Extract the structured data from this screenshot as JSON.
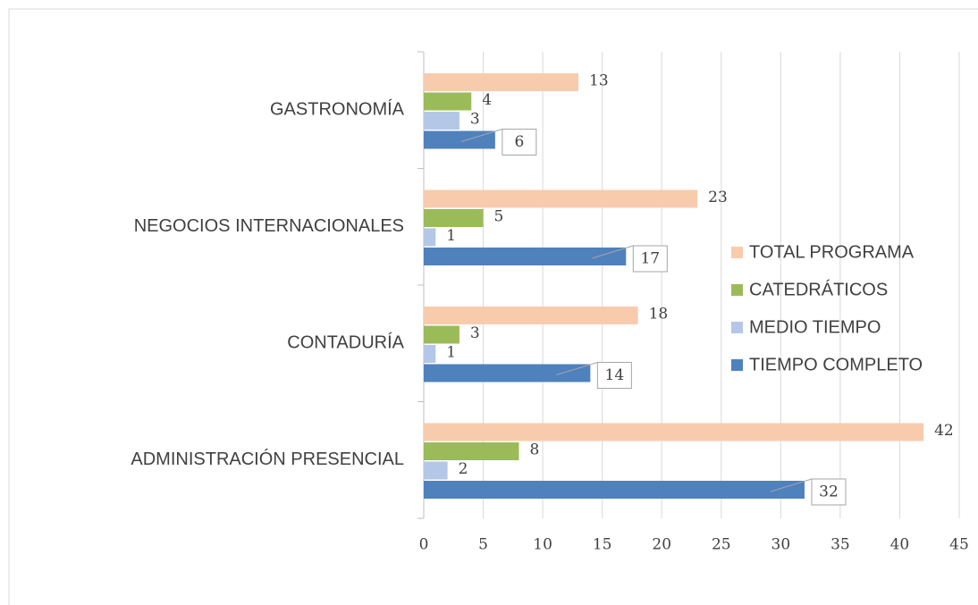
{
  "chart_data": {
    "type": "bar",
    "orientation": "horizontal",
    "categories": [
      "GASTRONOMÍA",
      "NEGOCIOS INTERNACIONALES",
      "CONTADURÍA",
      "ADMINISTRACIÓN PRESENCIAL"
    ],
    "series": [
      {
        "name": "TOTAL PROGRAMA",
        "color": "#f8cbad",
        "values": [
          13,
          23,
          18,
          42
        ]
      },
      {
        "name": "CATEDRÁTICOS",
        "color": "#9bbb59",
        "values": [
          4,
          5,
          3,
          8
        ]
      },
      {
        "name": "MEDIO TIEMPO",
        "color": "#b4c7e7",
        "values": [
          3,
          1,
          1,
          2
        ]
      },
      {
        "name": "TIEMPO COMPLETO",
        "color": "#4f81bd",
        "values": [
          6,
          17,
          14,
          32
        ]
      }
    ],
    "xlim": [
      0,
      45
    ],
    "xticks": [
      0,
      5,
      10,
      15,
      20,
      25,
      30,
      35,
      40,
      45
    ],
    "grid": true
  }
}
